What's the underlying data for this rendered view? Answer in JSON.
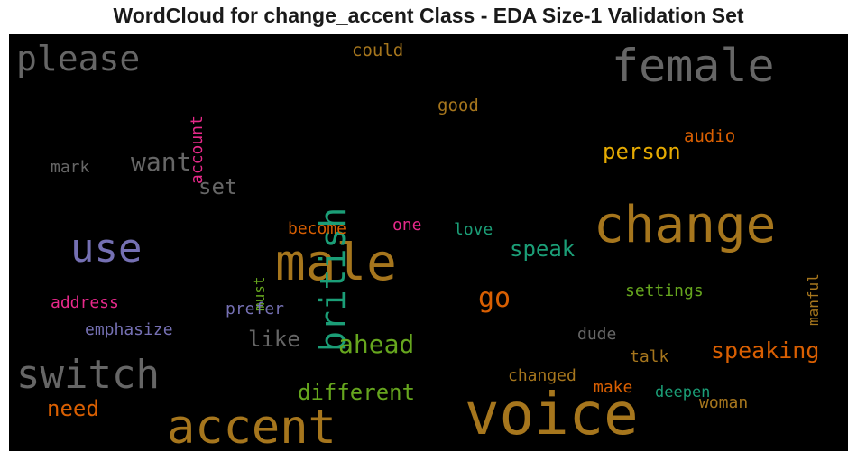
{
  "chart_data": {
    "type": "wordcloud",
    "title": "WordCloud for change_accent Class - EDA Size-1 Validation Set",
    "background": "#000000",
    "words": [
      {
        "text": "voice",
        "color": "#a6761d"
      },
      {
        "text": "change",
        "color": "#a6761d"
      },
      {
        "text": "male",
        "color": "#a6761d"
      },
      {
        "text": "accent",
        "color": "#a6761d"
      },
      {
        "text": "female",
        "color": "#666666"
      },
      {
        "text": "switch",
        "color": "#666666"
      },
      {
        "text": "please",
        "color": "#666666"
      },
      {
        "text": "use",
        "color": "#7570b3"
      },
      {
        "text": "british",
        "color": "#1b9e77"
      },
      {
        "text": "want",
        "color": "#666666"
      },
      {
        "text": "go",
        "color": "#d95f02"
      },
      {
        "text": "ahead",
        "color": "#66a61e"
      },
      {
        "text": "speaking",
        "color": "#d95f02"
      },
      {
        "text": "person",
        "color": "#e6ab02"
      },
      {
        "text": "different",
        "color": "#66a61e"
      },
      {
        "text": "speak",
        "color": "#1b9e77"
      },
      {
        "text": "need",
        "color": "#d95f02"
      },
      {
        "text": "like",
        "color": "#666666"
      },
      {
        "text": "set",
        "color": "#666666"
      },
      {
        "text": "account",
        "color": "#e7298a"
      },
      {
        "text": "could",
        "color": "#a6761d"
      },
      {
        "text": "good",
        "color": "#a6761d"
      },
      {
        "text": "audio",
        "color": "#d95f02"
      },
      {
        "text": "mark",
        "color": "#666666"
      },
      {
        "text": "become",
        "color": "#d95f02"
      },
      {
        "text": "one",
        "color": "#e7298a"
      },
      {
        "text": "love",
        "color": "#1b9e77"
      },
      {
        "text": "must",
        "color": "#66a61e"
      },
      {
        "text": "manful",
        "color": "#a6761d"
      },
      {
        "text": "address",
        "color": "#e7298a"
      },
      {
        "text": "prefer",
        "color": "#7570b3"
      },
      {
        "text": "settings",
        "color": "#66a61e"
      },
      {
        "text": "emphasize",
        "color": "#7570b3"
      },
      {
        "text": "dude",
        "color": "#666666"
      },
      {
        "text": "talk",
        "color": "#a6761d"
      },
      {
        "text": "changed",
        "color": "#a6761d"
      },
      {
        "text": "make",
        "color": "#d95f02"
      },
      {
        "text": "deepen",
        "color": "#1b9e77"
      },
      {
        "text": "woman",
        "color": "#a6761d"
      }
    ]
  }
}
